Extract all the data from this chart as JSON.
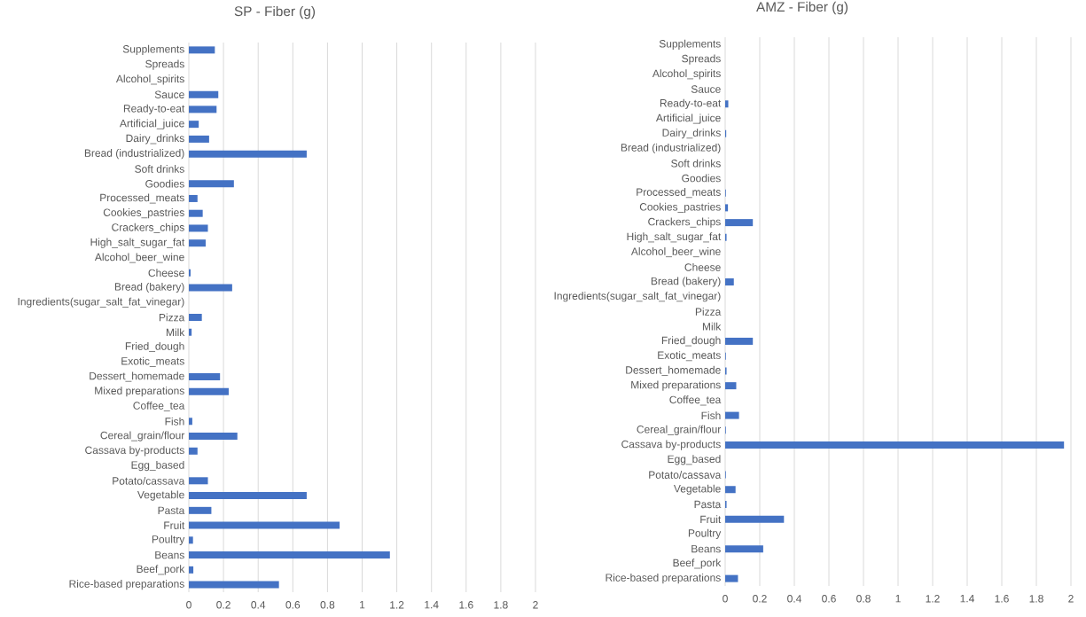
{
  "chart_data": [
    {
      "type": "bar",
      "orientation": "horizontal",
      "title": "SP - Fiber (g)",
      "color": "#4472c4",
      "grid": "x",
      "xlim": [
        0,
        2
      ],
      "xticks": [
        0,
        0.2,
        0.4,
        0.6,
        0.8,
        1,
        1.2,
        1.4,
        1.6,
        1.8,
        2
      ],
      "categories": [
        "Supplements",
        "Spreads",
        "Alcohol_spirits",
        "Sauce",
        "Ready-to-eat",
        "Artificial_juice",
        "Dairy_drinks",
        "Bread (industrialized)",
        "Soft drinks",
        "Goodies",
        "Processed_meats",
        "Cookies_pastries",
        "Crackers_chips",
        "High_salt_sugar_fat",
        "Alcohol_beer_wine",
        "Cheese",
        "Bread (bakery)",
        "Ingredients(sugar_salt_fat_vinegar)",
        "Pizza",
        "Milk",
        "Fried_dough",
        "Exotic_meats",
        "Dessert_homemade",
        "Mixed preparations",
        "Coffee_tea",
        "Fish",
        "Cereal_grain/flour",
        "Cassava by-products",
        "Egg_based",
        "Potato/cassava",
        "Vegetable",
        "Pasta",
        "Fruit",
        "Poultry",
        "Beans",
        "Beef_pork",
        "Rice-based preparations"
      ],
      "values": [
        0.15,
        0,
        0,
        0.17,
        0.16,
        0.057,
        0.117,
        0.68,
        0,
        0.26,
        0.05,
        0.08,
        0.11,
        0.097,
        0,
        0.01,
        0.25,
        0,
        0.075,
        0.016,
        0,
        0,
        0.18,
        0.23,
        0,
        0.02,
        0.28,
        0.05,
        0,
        0.11,
        0.68,
        0.13,
        0.87,
        0.024,
        1.16,
        0.026,
        0.52
      ]
    },
    {
      "type": "bar",
      "orientation": "horizontal",
      "title": "AMZ - Fiber (g)",
      "color": "#4472c4",
      "grid": "x",
      "xlim": [
        0,
        2
      ],
      "xticks": [
        0,
        0.2,
        0.4,
        0.6,
        0.8,
        1,
        1.2,
        1.4,
        1.6,
        1.8,
        2
      ],
      "categories": [
        "Supplements",
        "Spreads",
        "Alcohol_spirits",
        "Sauce",
        "Ready-to-eat",
        "Artificial_juice",
        "Dairy_drinks",
        "Bread (industrialized)",
        "Soft drinks",
        "Goodies",
        "Processed_meats",
        "Cookies_pastries",
        "Crackers_chips",
        "High_salt_sugar_fat",
        "Alcohol_beer_wine",
        "Cheese",
        "Bread (bakery)",
        "Ingredients(sugar_salt_fat_vinegar)",
        "Pizza",
        "Milk",
        "Fried_dough",
        "Exotic_meats",
        "Dessert_homemade",
        "Mixed preparations",
        "Coffee_tea",
        "Fish",
        "Cereal_grain/flour",
        "Cassava by-products",
        "Egg_based",
        "Potato/cassava",
        "Vegetable",
        "Pasta",
        "Fruit",
        "Poultry",
        "Beans",
        "Beef_pork",
        "Rice-based preparations"
      ],
      "values": [
        0,
        0,
        0,
        0,
        0.018,
        0,
        0.006,
        0,
        0,
        0,
        0.004,
        0.016,
        0.16,
        0.008,
        0,
        0,
        0.05,
        0,
        0,
        0,
        0.16,
        0.004,
        0.008,
        0.064,
        0,
        0.08,
        0.004,
        1.96,
        0,
        0.004,
        0.06,
        0.008,
        0.34,
        0,
        0.22,
        0,
        0.074
      ]
    }
  ]
}
